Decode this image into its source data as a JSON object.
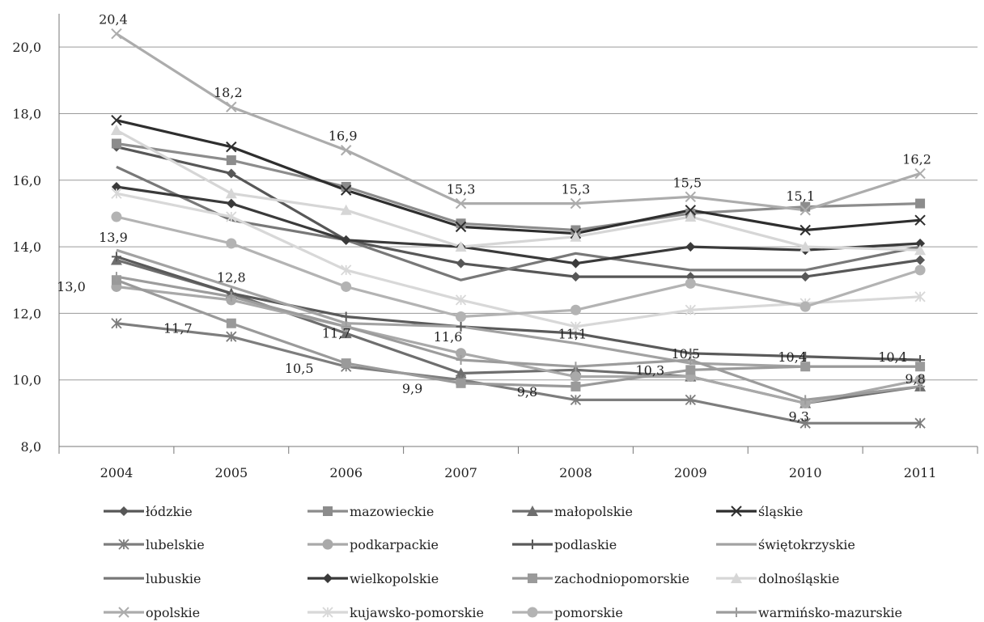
{
  "chart_data": {
    "type": "line",
    "title": "",
    "xlabel": "",
    "ylabel": "",
    "ylim": [
      8,
      21
    ],
    "yticks": [
      "8,0",
      "10,0",
      "12,0",
      "14,0",
      "16,0",
      "18,0",
      "20,0"
    ],
    "ytick_values": [
      8,
      10,
      12,
      14,
      16,
      18,
      20
    ],
    "categories": [
      "2004",
      "2005",
      "2006",
      "2007",
      "2008",
      "2009",
      "2010",
      "2011"
    ],
    "grid": "horizontal",
    "legend_position": "bottom",
    "series": [
      {
        "name": "łódzkie",
        "color": "#575757",
        "marker": "diamond",
        "values": [
          17.0,
          16.2,
          14.2,
          13.5,
          13.1,
          13.1,
          13.1,
          13.6
        ]
      },
      {
        "name": "mazowieckie",
        "color": "#8c8c8c",
        "marker": "square",
        "values": [
          17.1,
          16.6,
          15.8,
          14.7,
          14.5,
          15.0,
          15.2,
          15.3
        ]
      },
      {
        "name": "małopolskie",
        "color": "#6e6e6e",
        "marker": "triangle",
        "values": [
          13.6,
          12.6,
          11.4,
          10.2,
          10.3,
          10.1,
          9.3,
          9.8
        ]
      },
      {
        "name": "śląskie",
        "color": "#2e2e2e",
        "marker": "x",
        "values": [
          17.8,
          17.0,
          15.7,
          14.6,
          14.4,
          15.1,
          14.5,
          14.8
        ]
      },
      {
        "name": "lubelskie",
        "color": "#7d7d7d",
        "marker": "star",
        "values": [
          11.7,
          11.3,
          10.4,
          10.0,
          9.4,
          9.4,
          8.7,
          8.7
        ]
      },
      {
        "name": "podkarpackie",
        "color": "#a9a9a9",
        "marker": "circle",
        "values": [
          12.8,
          12.4,
          11.6,
          10.8,
          10.1,
          10.1,
          9.3,
          10.0
        ]
      },
      {
        "name": "podlaskie",
        "color": "#5a5a5a",
        "marker": "plus",
        "values": [
          13.7,
          12.6,
          11.9,
          11.6,
          11.4,
          10.8,
          10.7,
          10.6
        ]
      },
      {
        "name": "świętokrzyskie",
        "color": "#a2a2a2",
        "marker": "none",
        "values": [
          13.9,
          12.8,
          11.7,
          11.6,
          11.1,
          10.5,
          10.4,
          10.4
        ]
      },
      {
        "name": "lubuskie",
        "color": "#787878",
        "marker": "none",
        "values": [
          16.4,
          14.8,
          14.2,
          13.0,
          13.8,
          13.3,
          13.3,
          14.0
        ]
      },
      {
        "name": "wielkopolskie",
        "color": "#3a3a3a",
        "marker": "diamond",
        "values": [
          15.8,
          15.3,
          14.2,
          14.0,
          13.5,
          14.0,
          13.9,
          14.1
        ]
      },
      {
        "name": "zachodniopomorskie",
        "color": "#9a9a9a",
        "marker": "square",
        "values": [
          13.0,
          11.7,
          10.5,
          9.9,
          9.8,
          10.3,
          10.4,
          10.4
        ]
      },
      {
        "name": "dolnośląskie",
        "color": "#d6d6d6",
        "marker": "triangle",
        "values": [
          17.5,
          15.6,
          15.1,
          14.0,
          14.3,
          14.9,
          14.0,
          13.9
        ]
      },
      {
        "name": "opolskie",
        "color": "#acacac",
        "marker": "x",
        "values": [
          20.4,
          18.2,
          16.9,
          15.3,
          15.3,
          15.5,
          15.1,
          16.2
        ]
      },
      {
        "name": "kujawsko-pomorskie",
        "color": "#d8d8d8",
        "marker": "star",
        "values": [
          15.6,
          14.9,
          13.3,
          12.4,
          11.6,
          12.1,
          12.3,
          12.5
        ]
      },
      {
        "name": "pomorskie",
        "color": "#b3b3b3",
        "marker": "circle",
        "values": [
          14.9,
          14.1,
          12.8,
          11.9,
          12.1,
          12.9,
          12.2,
          13.3
        ]
      },
      {
        "name": "warmińsko-mazurskie",
        "color": "#9c9c9c",
        "marker": "plus",
        "values": [
          13.1,
          12.5,
          11.6,
          10.6,
          10.4,
          10.6,
          9.4,
          9.8
        ]
      }
    ],
    "annotations": [
      {
        "text": "20,4",
        "x": "2004",
        "y": 20.4
      },
      {
        "text": "18,2",
        "x": "2005",
        "y": 18.2
      },
      {
        "text": "16,9",
        "x": "2006",
        "y": 16.9
      },
      {
        "text": "15,3",
        "x": "2007",
        "y": 15.3
      },
      {
        "text": "15,3",
        "x": "2008",
        "y": 15.3
      },
      {
        "text": "15,5",
        "x": "2009",
        "y": 15.5
      },
      {
        "text": "15,1",
        "x": "2010",
        "y": 15.1
      },
      {
        "text": "16,2",
        "x": "2011",
        "y": 16.2
      },
      {
        "text": "13,9",
        "x": "2004",
        "y": 13.9
      },
      {
        "text": "13,0",
        "x": "2004",
        "y": 13.0
      },
      {
        "text": "12,8",
        "x": "2005",
        "y": 12.8
      },
      {
        "text": "11,7",
        "x": "2005",
        "y": 11.7
      },
      {
        "text": "11,7",
        "x": "2006",
        "y": 11.7
      },
      {
        "text": "10,5",
        "x": "2006",
        "y": 10.5
      },
      {
        "text": "11,6",
        "x": "2007",
        "y": 11.6
      },
      {
        "text": "9,9",
        "x": "2007",
        "y": 9.9
      },
      {
        "text": "11,1",
        "x": "2008",
        "y": 11.1
      },
      {
        "text": "9,8",
        "x": "2008",
        "y": 9.8
      },
      {
        "text": "10,5",
        "x": "2009",
        "y": 10.5
      },
      {
        "text": "10,3",
        "x": "2009",
        "y": 10.3
      },
      {
        "text": "10,4",
        "x": "2010",
        "y": 10.4
      },
      {
        "text": "9,3",
        "x": "2010",
        "y": 9.3
      },
      {
        "text": "10,4",
        "x": "2011",
        "y": 10.4
      },
      {
        "text": "9,8",
        "x": "2011",
        "y": 9.8
      }
    ]
  }
}
